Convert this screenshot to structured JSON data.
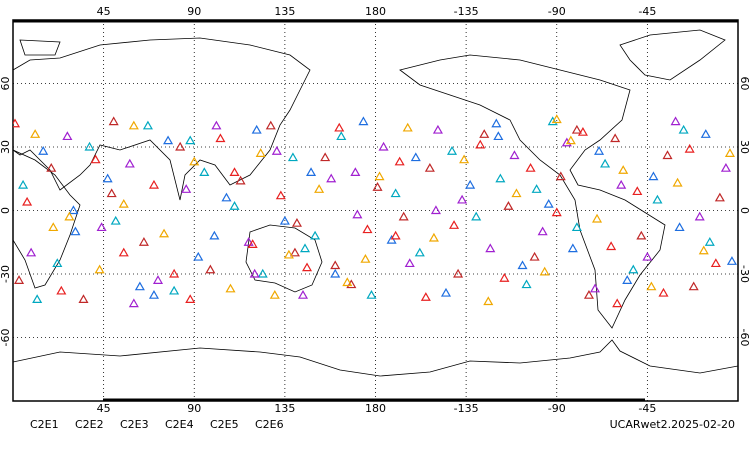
{
  "chart_data": {
    "type": "scatter",
    "xlim": [
      0,
      360
    ],
    "ylim": [
      -90,
      90
    ],
    "xticks": [
      45,
      90,
      135,
      180,
      -135,
      -90,
      -45
    ],
    "yticks": [
      60,
      30,
      0,
      -30,
      -60
    ],
    "grid": true,
    "annotation": "UCARwet2.2025-02-20",
    "series": [
      {
        "name": "C2E1",
        "color": "#00a8c0",
        "x": [
          5,
          22,
          38,
          51,
          67,
          80,
          95,
          110,
          124,
          139,
          150,
          163,
          178,
          -170,
          -158,
          -142,
          -130,
          -118,
          -105,
          -92,
          -80,
          -66,
          -52,
          -40,
          -27,
          -14,
          12,
          88,
          145,
          -100
        ],
        "y": [
          12,
          -25,
          30,
          -5,
          40,
          -38,
          18,
          2,
          -30,
          25,
          -12,
          35,
          -40,
          8,
          -20,
          28,
          -3,
          15,
          -35,
          42,
          -8,
          22,
          -28,
          5,
          38,
          -15,
          -42,
          33,
          -18,
          10
        ]
      },
      {
        "name": "C2E2",
        "color": "#a020d0",
        "x": [
          9,
          27,
          44,
          58,
          72,
          86,
          101,
          117,
          131,
          144,
          158,
          171,
          -176,
          -163,
          -149,
          -137,
          -123,
          -111,
          -97,
          -85,
          -71,
          -58,
          -45,
          -31,
          -19,
          -6,
          60,
          120,
          -150,
          170
        ],
        "y": [
          -20,
          35,
          -8,
          22,
          -33,
          10,
          40,
          -15,
          28,
          -40,
          15,
          -2,
          30,
          -25,
          38,
          5,
          -18,
          26,
          -10,
          32,
          -37,
          12,
          -22,
          42,
          -3,
          20,
          -44,
          -30,
          0,
          18
        ]
      },
      {
        "name": "C2E3",
        "color": "#1e6ee0",
        "x": [
          15,
          31,
          47,
          63,
          77,
          92,
          106,
          121,
          135,
          148,
          160,
          174,
          -172,
          -160,
          -145,
          -133,
          -119,
          -107,
          -94,
          -82,
          -69,
          -55,
          -42,
          -29,
          -16,
          -3,
          100,
          70,
          -120,
          30
        ],
        "y": [
          28,
          -10,
          15,
          -36,
          33,
          -22,
          6,
          38,
          -5,
          18,
          -30,
          42,
          -14,
          25,
          -39,
          12,
          35,
          -26,
          3,
          -18,
          28,
          -33,
          16,
          -8,
          36,
          -24,
          -12,
          -40,
          41,
          0
        ]
      },
      {
        "name": "C2E4",
        "color": "#c02828",
        "x": [
          3,
          19,
          35,
          49,
          65,
          83,
          98,
          113,
          128,
          141,
          155,
          168,
          -179,
          -166,
          -153,
          -139,
          -126,
          -114,
          -101,
          -88,
          -74,
          -61,
          -48,
          -35,
          -22,
          -9,
          140,
          50,
          -80,
          160
        ],
        "y": [
          -33,
          20,
          -42,
          8,
          -15,
          30,
          -28,
          14,
          40,
          -6,
          25,
          -35,
          11,
          -3,
          20,
          -30,
          36,
          2,
          -22,
          16,
          -40,
          34,
          -12,
          26,
          -36,
          6,
          -20,
          42,
          38,
          -26
        ]
      },
      {
        "name": "C2E5",
        "color": "#e82020",
        "x": [
          7,
          24,
          41,
          55,
          70,
          88,
          103,
          119,
          133,
          146,
          162,
          176,
          -168,
          -155,
          -141,
          -128,
          -116,
          -103,
          -90,
          -77,
          -63,
          -50,
          -37,
          -24,
          -11,
          1,
          110,
          -170,
          -60,
          80
        ],
        "y": [
          4,
          -38,
          24,
          -20,
          12,
          -42,
          34,
          -16,
          7,
          -27,
          39,
          -9,
          23,
          -41,
          -7,
          31,
          -32,
          20,
          -1,
          37,
          -17,
          9,
          -39,
          29,
          -25,
          41,
          18,
          -12,
          -44,
          -30
        ]
      },
      {
        "name": "C2E6",
        "color": "#f0a800",
        "x": [
          11,
          28,
          43,
          60,
          75,
          90,
          108,
          123,
          137,
          152,
          166,
          -178,
          -164,
          -151,
          -136,
          -124,
          -110,
          -96,
          -83,
          -70,
          -57,
          -43,
          -30,
          -17,
          -4,
          20,
          130,
          -90,
          175,
          55
        ],
        "y": [
          36,
          -3,
          -28,
          40,
          -11,
          23,
          -37,
          27,
          -21,
          10,
          -34,
          16,
          39,
          -13,
          24,
          -43,
          8,
          -29,
          33,
          -4,
          19,
          -36,
          13,
          -19,
          27,
          -8,
          -40,
          43,
          -23,
          3
        ]
      }
    ]
  }
}
